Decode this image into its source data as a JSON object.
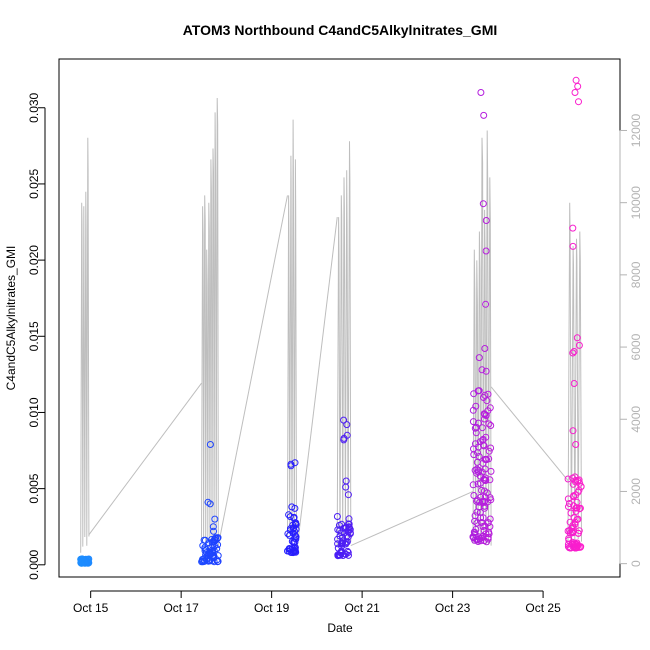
{
  "chart_data": {
    "type": "scatter",
    "title": "ATOM3 Northbound C4andC5Alkylnitrates_GMI",
    "xlabel": "Date",
    "ylabel": "C4andC5Alkylnitrates_GMI",
    "x_ticks": [
      "Oct 15",
      "Oct 17",
      "Oct 19",
      "Oct 21",
      "Oct 23",
      "Oct 25"
    ],
    "y_ticks": [
      "0.000",
      "0.005",
      "0.010",
      "0.015",
      "0.020",
      "0.025",
      "0.030"
    ],
    "y2_ticks": [
      "0",
      "2000",
      "4000",
      "6000",
      "8000",
      "10000",
      "12000"
    ],
    "xlim_days": [
      14.3,
      26.7
    ],
    "ylim": [
      -0.0008,
      0.0332
    ],
    "y2lim": [
      -370,
      13980
    ],
    "colors": {
      "altitude_line": "#bebebe",
      "right_axis": "#b3b3b3",
      "point_start": "#1e90ff",
      "point_mid": "#1e1eff",
      "point_end": "#ff1ecc"
    },
    "flights": [
      {
        "start_day": 14.78,
        "end_day": 14.96,
        "y_min": 0.0001,
        "y_max": 0.0004,
        "n": 45,
        "outliers": [],
        "alt_peaks": [
          10000,
          9900,
          10300,
          11800
        ]
      },
      {
        "start_day": 17.45,
        "end_day": 17.82,
        "y_min": 0.0002,
        "y_max": 0.0018,
        "n": 60,
        "outliers": [
          0.0079,
          0.0041,
          0.004,
          0.003,
          0.0025,
          0.0022
        ],
        "alt_peaks": [
          9900,
          10200,
          8700,
          10000,
          11200,
          11500,
          12500,
          12900
        ]
      },
      {
        "start_day": 19.35,
        "end_day": 19.55,
        "y_min": 0.0008,
        "y_max": 0.0035,
        "n": 45,
        "outliers": [
          0.0067,
          0.0066,
          0.0065,
          0.0038,
          0.0037
        ],
        "alt_peaks": [
          10200,
          11300,
          12300,
          11200
        ]
      },
      {
        "start_day": 20.45,
        "end_day": 20.75,
        "y_min": 0.0006,
        "y_max": 0.0032,
        "n": 55,
        "outliers": [
          0.0095,
          0.0092,
          0.0085,
          0.0083,
          0.0082,
          0.0055,
          0.0051,
          0.0046
        ],
        "alt_peaks": [
          9600,
          10200,
          10700,
          10900,
          11700
        ]
      },
      {
        "start_day": 23.45,
        "end_day": 23.85,
        "y_min": 0.0015,
        "y_max": 0.0115,
        "n": 120,
        "outliers": [
          0.031,
          0.0295,
          0.0237,
          0.0226,
          0.0206,
          0.0171,
          0.0142,
          0.0136,
          0.0128,
          0.0127
        ],
        "alt_peaks": [
          8700,
          8400,
          9200,
          11800,
          9800,
          12000,
          10700
        ]
      },
      {
        "start_day": 25.55,
        "end_day": 25.85,
        "y_min": 0.0011,
        "y_max": 0.006,
        "n": 75,
        "outliers": [
          0.0318,
          0.0314,
          0.031,
          0.0304,
          0.0221,
          0.0209,
          0.0149,
          0.0144,
          0.014,
          0.0139,
          0.0119,
          0.0088,
          0.0079
        ],
        "alt_peaks": [
          10000,
          8800,
          9000,
          9200
        ]
      }
    ],
    "altitude_transits": [
      {
        "from": [
          14.96,
          800
        ],
        "to": [
          17.45,
          5000
        ]
      },
      {
        "from": [
          17.82,
          500
        ],
        "to": [
          19.35,
          10200
        ]
      },
      {
        "from": [
          19.55,
          300
        ],
        "to": [
          20.45,
          9600
        ]
      },
      {
        "from": [
          20.75,
          500
        ],
        "to": [
          23.45,
          2000
        ]
      },
      {
        "from": [
          23.85,
          4900
        ],
        "to": [
          25.55,
          2300
        ]
      }
    ]
  }
}
